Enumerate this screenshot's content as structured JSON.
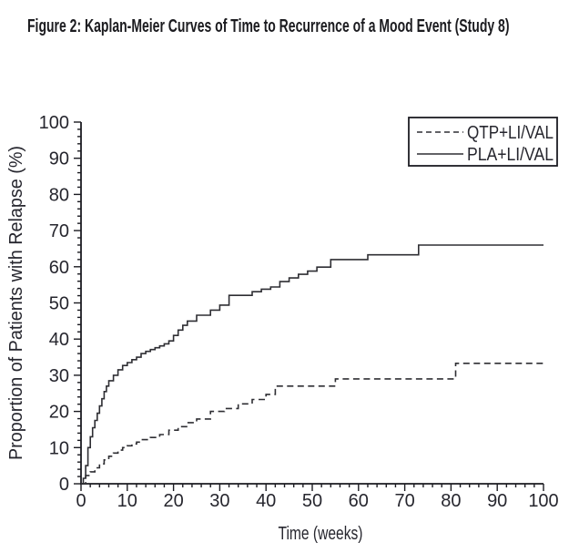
{
  "chart_data": {
    "type": "line",
    "subtype": "kaplan_meier_step",
    "title": "Figure 2: Kaplan-Meier Curves of Time to Recurrence of a Mood Event (Study 8)",
    "xlabel": "Time (weeks)",
    "ylabel": "Proportion of Patients with Relapse (%)",
    "xlim": [
      0,
      100
    ],
    "ylim": [
      0,
      100
    ],
    "xticks": [
      0,
      10,
      20,
      30,
      40,
      50,
      60,
      70,
      80,
      90,
      100
    ],
    "yticks": [
      0,
      10,
      20,
      30,
      40,
      50,
      60,
      70,
      80,
      90,
      100
    ],
    "minor_tick_step": 2,
    "grid": false,
    "legend_position": "top-right",
    "colors": {
      "axis": "#1c1c22",
      "text": "#26262e",
      "line": "#2e2e33"
    },
    "series": [
      {
        "name": "QTP+LI/VAL",
        "style": "dashed",
        "points": [
          [
            0,
            0
          ],
          [
            1,
            2.3
          ],
          [
            2,
            3.3
          ],
          [
            3,
            4.4
          ],
          [
            4,
            5.5
          ],
          [
            5,
            6.6
          ],
          [
            6,
            7.6
          ],
          [
            7,
            8.5
          ],
          [
            8,
            9.3
          ],
          [
            9,
            10
          ],
          [
            10,
            10.5
          ],
          [
            11,
            11
          ],
          [
            12,
            11.5
          ],
          [
            13,
            12.2
          ],
          [
            15,
            12.8
          ],
          [
            17,
            13.6
          ],
          [
            19,
            14.8
          ],
          [
            21,
            15.8
          ],
          [
            23,
            16.9
          ],
          [
            25,
            17.9
          ],
          [
            28,
            20
          ],
          [
            31,
            20.8
          ],
          [
            34,
            22.1
          ],
          [
            37,
            23.3
          ],
          [
            40,
            24.7
          ],
          [
            42,
            27
          ],
          [
            55,
            29
          ],
          [
            81,
            33.3
          ],
          [
            100,
            33.3
          ]
        ]
      },
      {
        "name": "PLA+LI/VAL",
        "style": "solid",
        "points": [
          [
            0,
            0
          ],
          [
            0.5,
            1.5
          ],
          [
            1,
            5
          ],
          [
            1.5,
            10
          ],
          [
            2,
            13
          ],
          [
            2.5,
            15.5
          ],
          [
            3,
            17.5
          ],
          [
            3.5,
            19.5
          ],
          [
            4,
            21.5
          ],
          [
            4.5,
            23.5
          ],
          [
            5,
            25.5
          ],
          [
            5.5,
            27
          ],
          [
            6,
            28.5
          ],
          [
            7,
            30
          ],
          [
            8,
            31.5
          ],
          [
            9,
            32.7
          ],
          [
            10,
            33.5
          ],
          [
            11,
            34.3
          ],
          [
            12,
            35
          ],
          [
            13,
            36
          ],
          [
            14,
            36.6
          ],
          [
            15,
            37.1
          ],
          [
            16,
            37.6
          ],
          [
            17,
            38.1
          ],
          [
            18,
            38.7
          ],
          [
            19,
            39.5
          ],
          [
            20,
            41
          ],
          [
            21,
            42.5
          ],
          [
            22,
            43.8
          ],
          [
            23,
            45
          ],
          [
            25,
            46.6
          ],
          [
            28,
            48
          ],
          [
            30,
            49.4
          ],
          [
            32,
            52.1
          ],
          [
            37,
            53.1
          ],
          [
            39,
            53.8
          ],
          [
            41,
            54.4
          ],
          [
            43,
            55.9
          ],
          [
            45,
            56.9
          ],
          [
            47,
            57.9
          ],
          [
            49,
            58.8
          ],
          [
            51,
            59.9
          ],
          [
            54,
            62
          ],
          [
            62,
            63.3
          ],
          [
            73,
            66
          ],
          [
            100,
            66
          ]
        ]
      }
    ]
  }
}
